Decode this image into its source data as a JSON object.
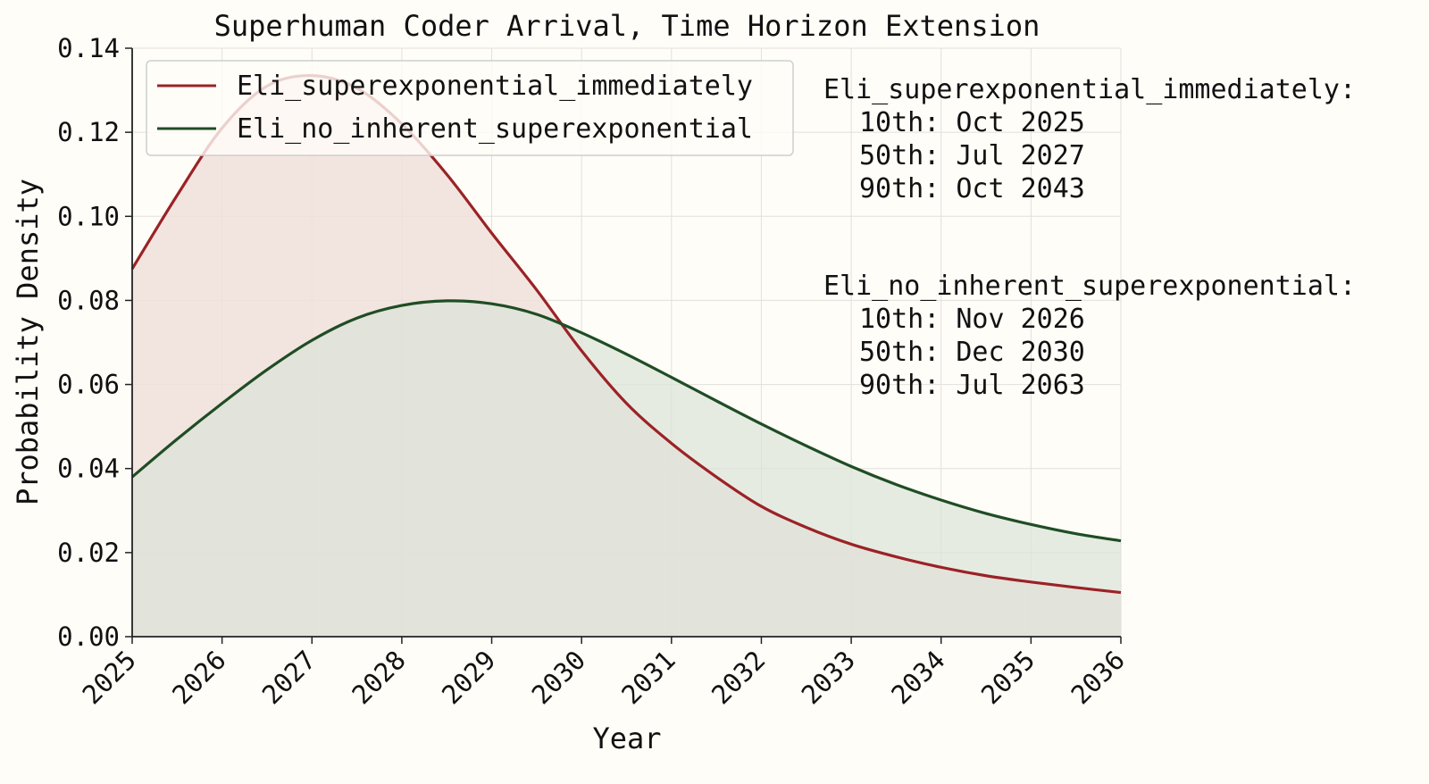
{
  "chart_data": {
    "type": "area",
    "title": "Superhuman Coder Arrival, Time Horizon Extension",
    "xlabel": "Year",
    "ylabel": "Probability Density",
    "xlim": [
      2025,
      2036
    ],
    "ylim": [
      0,
      0.14
    ],
    "x_ticks": [
      "2025",
      "2026",
      "2027",
      "2028",
      "2029",
      "2030",
      "2031",
      "2032",
      "2033",
      "2034",
      "2035",
      "2036"
    ],
    "y_ticks": [
      "0.00",
      "0.02",
      "0.04",
      "0.06",
      "0.08",
      "0.10",
      "0.12",
      "0.14"
    ],
    "grid": true,
    "legend_position": "top-left",
    "series": [
      {
        "name": "Eli_superexponential_immediately",
        "color": "#9b2226",
        "fill": "#f0e0dc",
        "x": [
          2025,
          2025.5,
          2026,
          2026.5,
          2027,
          2027.5,
          2028,
          2028.5,
          2029,
          2029.5,
          2030,
          2030.5,
          2031,
          2031.5,
          2032,
          2032.5,
          2033,
          2033.5,
          2034,
          2034.5,
          2035,
          2035.5,
          2036
        ],
        "y": [
          0.0875,
          0.105,
          0.121,
          0.131,
          0.1335,
          0.1305,
          0.122,
          0.11,
          0.096,
          0.0825,
          0.068,
          0.0555,
          0.046,
          0.038,
          0.031,
          0.026,
          0.022,
          0.019,
          0.0165,
          0.0145,
          0.013,
          0.0117,
          0.0105
        ]
      },
      {
        "name": "Eli_no_inherent_superexponential",
        "color": "#1f4d24",
        "fill": "#dce3d8",
        "x": [
          2025,
          2025.5,
          2026,
          2026.5,
          2027,
          2027.5,
          2028,
          2028.5,
          2029,
          2029.5,
          2030,
          2030.5,
          2031,
          2031.5,
          2032,
          2032.5,
          2033,
          2033.5,
          2034,
          2034.5,
          2035,
          2035.5,
          2036
        ],
        "y": [
          0.038,
          0.047,
          0.0555,
          0.0635,
          0.0705,
          0.0758,
          0.0788,
          0.0799,
          0.0792,
          0.0767,
          0.0723,
          0.0672,
          0.0617,
          0.0561,
          0.0506,
          0.0454,
          0.0405,
          0.0362,
          0.0325,
          0.0293,
          0.0267,
          0.0245,
          0.0228
        ]
      }
    ]
  },
  "annotations": [
    {
      "name": "Eli_superexponential_immediately:",
      "lines": [
        "10th: Oct 2025",
        "50th: Jul 2027",
        "90th: Oct 2043"
      ]
    },
    {
      "name": "Eli_no_inherent_superexponential:",
      "lines": [
        "10th: Nov 2026",
        "50th: Dec 2030",
        "90th: Jul 2063"
      ]
    }
  ]
}
